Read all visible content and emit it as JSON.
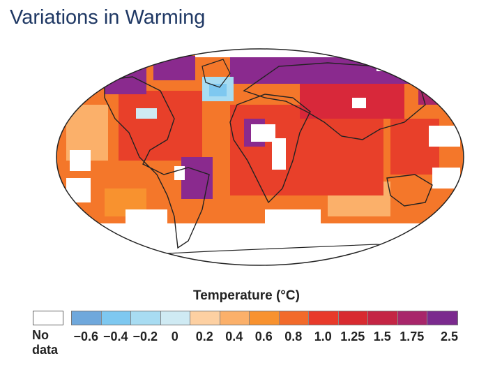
{
  "slide": {
    "title": "Variations in Warming"
  },
  "legend": {
    "title": "Temperature (°C)",
    "no_data_label": "No data",
    "ticks": [
      "−0.6",
      "−0.4",
      "−0.2",
      "0",
      "0.2",
      "0.4",
      "0.6",
      "0.8",
      "1.0",
      "1.25",
      "1.5",
      "1.75",
      "2.5"
    ],
    "swatch_colors": [
      "#6fa8dc",
      "#7ec8f0",
      "#a8dcf2",
      "#cfeaf3",
      "#fdd0a2",
      "#fbb06a",
      "#f8922f",
      "#f26a2a",
      "#e83a2a",
      "#d82a30",
      "#c42544",
      "#a8266a",
      "#7b2a8e"
    ]
  },
  "map": {
    "description_colors": {
      "ocean_base": "#f4772a",
      "warm": "#e8402a",
      "hot": "#d8283a",
      "very_hot": "#8a2a8e",
      "cool": "#a8dcf2",
      "coolest": "#7ec8f0",
      "mild": "#fbb06a",
      "no_data": "#ffffff"
    }
  }
}
